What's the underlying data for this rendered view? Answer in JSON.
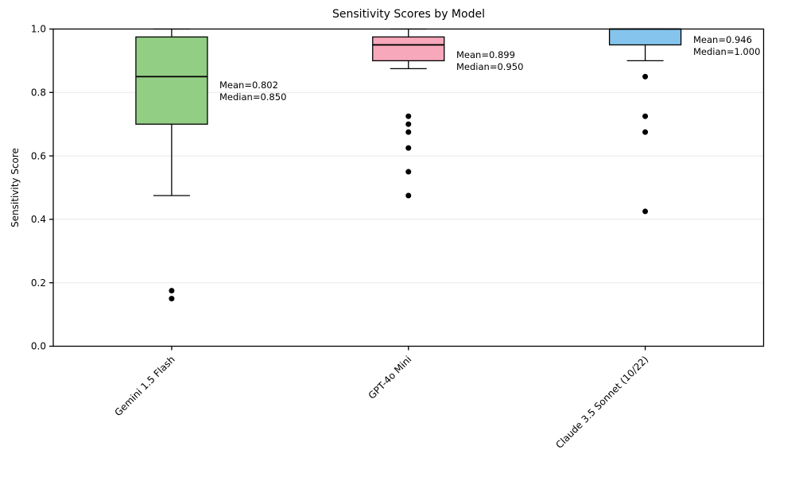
{
  "chart_data": {
    "type": "box",
    "title": "Sensitivity Scores by Model",
    "xlabel": "",
    "ylabel": "Sensitivity Score",
    "ylim": [
      0.0,
      1.0
    ],
    "yticks": [
      0.0,
      0.2,
      0.4,
      0.6,
      0.8,
      1.0
    ],
    "ytick_labels": [
      "0.0",
      "0.2",
      "0.4",
      "0.6",
      "0.8",
      "1.0"
    ],
    "grid": "horizontal-light",
    "gridline_color": "#e8e8e8",
    "legend": "none",
    "categories": [
      "Gemini 1.5 Flash",
      "GPT-4o Mini",
      "Claude 3.5 Sonnet (10/22)"
    ],
    "series": [
      {
        "name": "Gemini 1.5 Flash",
        "color": "#93ce85",
        "whisker_low": 0.475,
        "q1": 0.7,
        "median": 0.85,
        "q3": 0.975,
        "whisker_high": 1.0,
        "outliers": [
          0.175,
          0.15
        ],
        "mean": 0.802,
        "annotation": [
          "Mean=0.802",
          "Median=0.850"
        ]
      },
      {
        "name": "GPT-4o Mini",
        "color": "#f8a8bb",
        "whisker_low": 0.875,
        "q1": 0.9,
        "median": 0.95,
        "q3": 0.975,
        "whisker_high": 1.0,
        "outliers": [
          0.725,
          0.7,
          0.675,
          0.625,
          0.55,
          0.475
        ],
        "mean": 0.899,
        "annotation": [
          "Mean=0.899",
          "Median=0.950"
        ]
      },
      {
        "name": "Claude 3.5 Sonnet (10/22)",
        "color": "#85c4ec",
        "whisker_low": 0.9,
        "q1": 0.95,
        "median": 1.0,
        "q3": 1.0,
        "whisker_high": 1.0,
        "outliers": [
          0.85,
          0.725,
          0.675,
          0.425
        ],
        "mean": 0.946,
        "annotation": [
          "Mean=0.946",
          "Median=1.000"
        ]
      }
    ],
    "box_edge_color": "#000000",
    "median_color": "#000000",
    "outlier_color": "#000000"
  }
}
